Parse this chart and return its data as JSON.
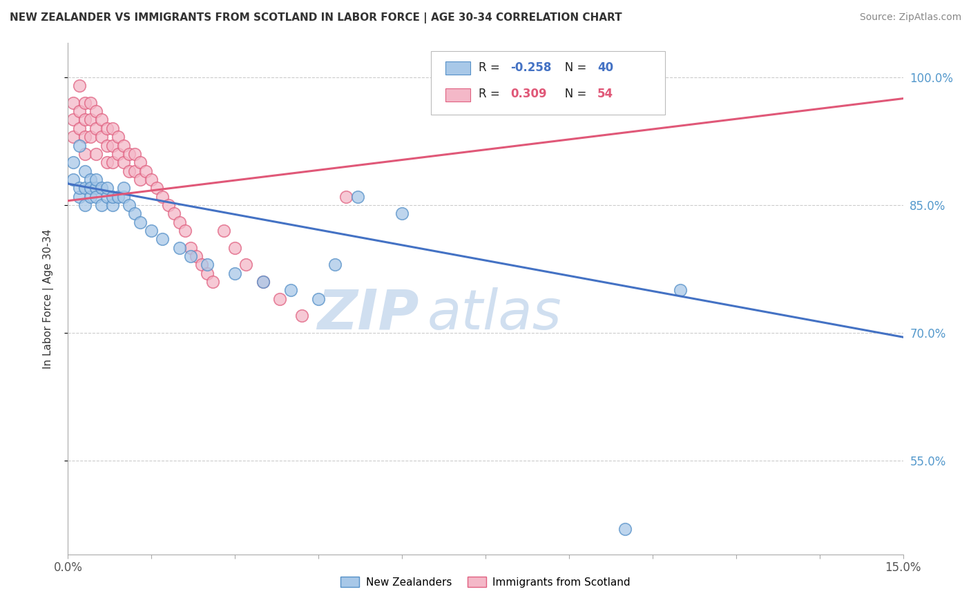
{
  "title": "NEW ZEALANDER VS IMMIGRANTS FROM SCOTLAND IN LABOR FORCE | AGE 30-34 CORRELATION CHART",
  "source": "Source: ZipAtlas.com",
  "ylabel": "In Labor Force | Age 30-34",
  "xmin": 0.0,
  "xmax": 0.15,
  "ymin": 0.44,
  "ymax": 1.04,
  "yticks": [
    0.55,
    0.7,
    0.85,
    1.0
  ],
  "ytick_labels": [
    "55.0%",
    "70.0%",
    "85.0%",
    "100.0%"
  ],
  "blue_color": "#a8c8e8",
  "blue_edge_color": "#5590c8",
  "pink_color": "#f4b8c8",
  "pink_edge_color": "#e06080",
  "blue_line_color": "#4472c4",
  "pink_line_color": "#e05878",
  "watermark_zip": "ZIP",
  "watermark_atlas": "atlas",
  "watermark_color": "#d0dff0",
  "grid_color": "#cccccc",
  "blue_scatter_x": [
    0.001,
    0.001,
    0.002,
    0.002,
    0.002,
    0.003,
    0.003,
    0.003,
    0.004,
    0.004,
    0.004,
    0.005,
    0.005,
    0.005,
    0.006,
    0.006,
    0.007,
    0.007,
    0.008,
    0.008,
    0.009,
    0.01,
    0.01,
    0.011,
    0.012,
    0.013,
    0.015,
    0.017,
    0.02,
    0.022,
    0.025,
    0.03,
    0.035,
    0.04,
    0.045,
    0.048,
    0.052,
    0.06,
    0.1,
    0.11
  ],
  "blue_scatter_y": [
    0.9,
    0.88,
    0.92,
    0.86,
    0.87,
    0.89,
    0.85,
    0.87,
    0.88,
    0.86,
    0.87,
    0.87,
    0.88,
    0.86,
    0.87,
    0.85,
    0.86,
    0.87,
    0.85,
    0.86,
    0.86,
    0.86,
    0.87,
    0.85,
    0.84,
    0.83,
    0.82,
    0.81,
    0.8,
    0.79,
    0.78,
    0.77,
    0.76,
    0.75,
    0.74,
    0.78,
    0.86,
    0.84,
    0.47,
    0.75
  ],
  "pink_scatter_x": [
    0.001,
    0.001,
    0.001,
    0.002,
    0.002,
    0.002,
    0.003,
    0.003,
    0.003,
    0.003,
    0.004,
    0.004,
    0.004,
    0.005,
    0.005,
    0.005,
    0.006,
    0.006,
    0.007,
    0.007,
    0.007,
    0.008,
    0.008,
    0.008,
    0.009,
    0.009,
    0.01,
    0.01,
    0.011,
    0.011,
    0.012,
    0.012,
    0.013,
    0.013,
    0.014,
    0.015,
    0.016,
    0.017,
    0.018,
    0.019,
    0.02,
    0.021,
    0.022,
    0.023,
    0.024,
    0.025,
    0.026,
    0.028,
    0.03,
    0.032,
    0.035,
    0.038,
    0.042,
    0.05
  ],
  "pink_scatter_y": [
    0.97,
    0.95,
    0.93,
    0.99,
    0.96,
    0.94,
    0.97,
    0.95,
    0.93,
    0.91,
    0.97,
    0.95,
    0.93,
    0.96,
    0.94,
    0.91,
    0.95,
    0.93,
    0.94,
    0.92,
    0.9,
    0.94,
    0.92,
    0.9,
    0.93,
    0.91,
    0.92,
    0.9,
    0.91,
    0.89,
    0.91,
    0.89,
    0.9,
    0.88,
    0.89,
    0.88,
    0.87,
    0.86,
    0.85,
    0.84,
    0.83,
    0.82,
    0.8,
    0.79,
    0.78,
    0.77,
    0.76,
    0.82,
    0.8,
    0.78,
    0.76,
    0.74,
    0.72,
    0.86
  ],
  "blue_trend_x": [
    0.0,
    0.15
  ],
  "blue_trend_y": [
    0.875,
    0.695
  ],
  "pink_trend_x": [
    0.0,
    0.15
  ],
  "pink_trend_y": [
    0.855,
    0.975
  ]
}
